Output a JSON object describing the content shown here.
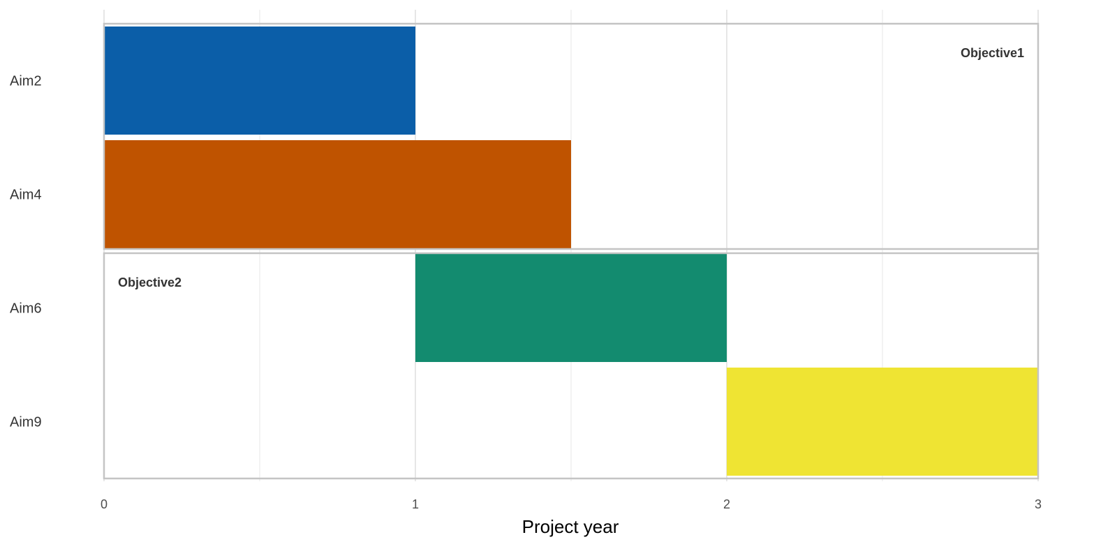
{
  "chart_data": {
    "type": "bar",
    "orientation": "horizontal",
    "subtype": "gantt",
    "xlabel": "Project year",
    "xlim": [
      0,
      3
    ],
    "xticks": [
      0,
      1,
      2,
      3
    ],
    "x_tick_labels": [
      "0",
      "1",
      "2",
      "3"
    ],
    "grid": true,
    "legend": "none",
    "categories": [
      "Aim2",
      "Aim4",
      "Aim6",
      "Aim9"
    ],
    "bars": [
      {
        "category": "Aim2",
        "start": 0,
        "end": 1,
        "color": "#0b5ea8"
      },
      {
        "category": "Aim4",
        "start": 0,
        "end": 1.5,
        "color": "#bf5300"
      },
      {
        "category": "Aim6",
        "start": 1,
        "end": 2,
        "color": "#138b6f"
      },
      {
        "category": "Aim9",
        "start": 2,
        "end": 3,
        "color": "#efe433"
      }
    ],
    "groups": [
      {
        "label": "Objective1",
        "categories": [
          "Aim2",
          "Aim4"
        ],
        "label_placement": "top-right"
      },
      {
        "label": "Objective2",
        "categories": [
          "Aim6",
          "Aim9"
        ],
        "label_placement": "top-left"
      }
    ]
  }
}
